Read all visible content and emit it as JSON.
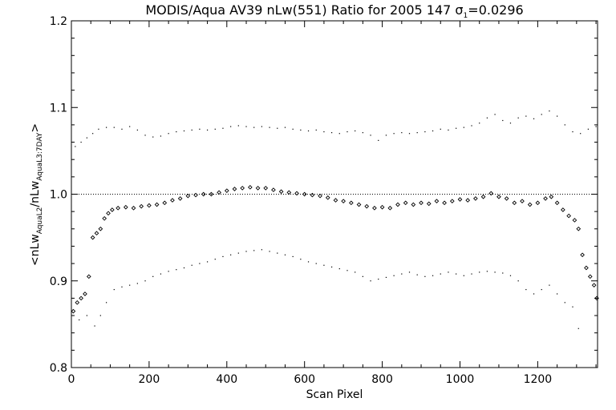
{
  "chart_data": {
    "type": "scatter",
    "title": {
      "main": "MODIS/Aqua AV39 nLw(551) Ratio for 2005 147 ",
      "sigma_symbol": "σ",
      "sigma_sub": "1",
      "sigma_value": "=0.0296"
    },
    "xlabel": "Scan Pixel",
    "ylabel": {
      "prefix": "<nLw",
      "sub1": "AquaL2",
      "mid": "/nLw",
      "sub2": "AquaL3:7DAY",
      "suffix": ">"
    },
    "xlim": [
      0,
      1354
    ],
    "ylim": [
      0.8,
      1.2
    ],
    "x_ticks": [
      0,
      200,
      400,
      600,
      800,
      1000,
      1200
    ],
    "x_tick_labels": [
      "0",
      "200",
      "400",
      "600",
      "800",
      "1000",
      "1200"
    ],
    "y_ticks": [
      0.8,
      0.9,
      1.0,
      1.1,
      1.2
    ],
    "y_tick_labels": [
      "0.8",
      "0.9",
      "1.0",
      "1.1",
      "1.2"
    ],
    "reference_line": 1.0,
    "series": [
      {
        "role": "mean",
        "marker": "diamond",
        "points": [
          [
            5,
            0.865
          ],
          [
            15,
            0.875
          ],
          [
            25,
            0.88
          ],
          [
            35,
            0.885
          ],
          [
            45,
            0.905
          ],
          [
            55,
            0.95
          ],
          [
            65,
            0.955
          ],
          [
            75,
            0.96
          ],
          [
            85,
            0.972
          ],
          [
            95,
            0.978
          ],
          [
            105,
            0.982
          ],
          [
            120,
            0.984
          ],
          [
            140,
            0.985
          ],
          [
            160,
            0.984
          ],
          [
            180,
            0.986
          ],
          [
            200,
            0.987
          ],
          [
            220,
            0.988
          ],
          [
            240,
            0.99
          ],
          [
            260,
            0.993
          ],
          [
            280,
            0.995
          ],
          [
            300,
            0.998
          ],
          [
            320,
            0.999
          ],
          [
            340,
            1.0
          ],
          [
            360,
            1.0
          ],
          [
            380,
            1.002
          ],
          [
            400,
            1.004
          ],
          [
            420,
            1.006
          ],
          [
            440,
            1.007
          ],
          [
            460,
            1.008
          ],
          [
            480,
            1.007
          ],
          [
            500,
            1.007
          ],
          [
            520,
            1.005
          ],
          [
            540,
            1.003
          ],
          [
            560,
            1.002
          ],
          [
            580,
            1.001
          ],
          [
            600,
            1.0
          ],
          [
            620,
            0.999
          ],
          [
            640,
            0.998
          ],
          [
            660,
            0.996
          ],
          [
            680,
            0.993
          ],
          [
            700,
            0.992
          ],
          [
            720,
            0.99
          ],
          [
            740,
            0.988
          ],
          [
            760,
            0.986
          ],
          [
            780,
            0.984
          ],
          [
            800,
            0.985
          ],
          [
            820,
            0.984
          ],
          [
            840,
            0.988
          ],
          [
            860,
            0.99
          ],
          [
            880,
            0.988
          ],
          [
            900,
            0.99
          ],
          [
            920,
            0.989
          ],
          [
            940,
            0.992
          ],
          [
            960,
            0.99
          ],
          [
            980,
            0.992
          ],
          [
            1000,
            0.994
          ],
          [
            1020,
            0.993
          ],
          [
            1040,
            0.995
          ],
          [
            1060,
            0.997
          ],
          [
            1080,
            1.001
          ],
          [
            1100,
            0.997
          ],
          [
            1120,
            0.995
          ],
          [
            1140,
            0.99
          ],
          [
            1160,
            0.992
          ],
          [
            1180,
            0.988
          ],
          [
            1200,
            0.99
          ],
          [
            1220,
            0.995
          ],
          [
            1235,
            0.997
          ],
          [
            1250,
            0.99
          ],
          [
            1265,
            0.982
          ],
          [
            1280,
            0.975
          ],
          [
            1295,
            0.97
          ],
          [
            1305,
            0.96
          ],
          [
            1315,
            0.93
          ],
          [
            1325,
            0.915
          ],
          [
            1335,
            0.905
          ],
          [
            1345,
            0.895
          ],
          [
            1352,
            0.88
          ]
        ]
      },
      {
        "role": "upper",
        "marker": "dot",
        "points": [
          [
            10,
            1.055
          ],
          [
            25,
            1.06
          ],
          [
            40,
            1.065
          ],
          [
            55,
            1.07
          ],
          [
            70,
            1.075
          ],
          [
            90,
            1.077
          ],
          [
            110,
            1.077
          ],
          [
            130,
            1.075
          ],
          [
            150,
            1.078
          ],
          [
            170,
            1.074
          ],
          [
            190,
            1.068
          ],
          [
            210,
            1.066
          ],
          [
            230,
            1.067
          ],
          [
            250,
            1.07
          ],
          [
            270,
            1.072
          ],
          [
            290,
            1.073
          ],
          [
            310,
            1.074
          ],
          [
            330,
            1.075
          ],
          [
            350,
            1.074
          ],
          [
            370,
            1.075
          ],
          [
            390,
            1.076
          ],
          [
            410,
            1.078
          ],
          [
            430,
            1.079
          ],
          [
            450,
            1.078
          ],
          [
            470,
            1.077
          ],
          [
            490,
            1.078
          ],
          [
            510,
            1.077
          ],
          [
            530,
            1.076
          ],
          [
            550,
            1.077
          ],
          [
            570,
            1.075
          ],
          [
            590,
            1.074
          ],
          [
            610,
            1.073
          ],
          [
            630,
            1.074
          ],
          [
            650,
            1.072
          ],
          [
            670,
            1.071
          ],
          [
            690,
            1.07
          ],
          [
            710,
            1.072
          ],
          [
            730,
            1.073
          ],
          [
            750,
            1.071
          ],
          [
            770,
            1.068
          ],
          [
            790,
            1.062
          ],
          [
            810,
            1.068
          ],
          [
            830,
            1.07
          ],
          [
            850,
            1.071
          ],
          [
            870,
            1.07
          ],
          [
            890,
            1.071
          ],
          [
            910,
            1.072
          ],
          [
            930,
            1.073
          ],
          [
            950,
            1.075
          ],
          [
            970,
            1.074
          ],
          [
            990,
            1.076
          ],
          [
            1010,
            1.077
          ],
          [
            1030,
            1.079
          ],
          [
            1050,
            1.082
          ],
          [
            1070,
            1.088
          ],
          [
            1090,
            1.092
          ],
          [
            1110,
            1.085
          ],
          [
            1130,
            1.082
          ],
          [
            1150,
            1.088
          ],
          [
            1170,
            1.09
          ],
          [
            1190,
            1.087
          ],
          [
            1210,
            1.092
          ],
          [
            1230,
            1.096
          ],
          [
            1250,
            1.09
          ],
          [
            1270,
            1.08
          ],
          [
            1290,
            1.072
          ],
          [
            1310,
            1.07
          ],
          [
            1330,
            1.075
          ],
          [
            1350,
            1.078
          ]
        ]
      },
      {
        "role": "lower",
        "marker": "dot",
        "points": [
          [
            20,
            0.855
          ],
          [
            40,
            0.86
          ],
          [
            60,
            0.848
          ],
          [
            75,
            0.86
          ],
          [
            90,
            0.875
          ],
          [
            110,
            0.89
          ],
          [
            130,
            0.893
          ],
          [
            150,
            0.895
          ],
          [
            170,
            0.897
          ],
          [
            190,
            0.9
          ],
          [
            210,
            0.905
          ],
          [
            230,
            0.908
          ],
          [
            250,
            0.911
          ],
          [
            270,
            0.913
          ],
          [
            290,
            0.915
          ],
          [
            310,
            0.918
          ],
          [
            330,
            0.92
          ],
          [
            350,
            0.922
          ],
          [
            370,
            0.925
          ],
          [
            390,
            0.928
          ],
          [
            410,
            0.93
          ],
          [
            430,
            0.932
          ],
          [
            450,
            0.934
          ],
          [
            470,
            0.935
          ],
          [
            490,
            0.936
          ],
          [
            510,
            0.934
          ],
          [
            530,
            0.932
          ],
          [
            550,
            0.93
          ],
          [
            570,
            0.928
          ],
          [
            590,
            0.925
          ],
          [
            610,
            0.922
          ],
          [
            630,
            0.92
          ],
          [
            650,
            0.918
          ],
          [
            670,
            0.916
          ],
          [
            690,
            0.914
          ],
          [
            710,
            0.912
          ],
          [
            730,
            0.91
          ],
          [
            750,
            0.905
          ],
          [
            770,
            0.9
          ],
          [
            790,
            0.902
          ],
          [
            810,
            0.904
          ],
          [
            830,
            0.906
          ],
          [
            850,
            0.908
          ],
          [
            870,
            0.91
          ],
          [
            890,
            0.907
          ],
          [
            910,
            0.905
          ],
          [
            930,
            0.906
          ],
          [
            950,
            0.908
          ],
          [
            970,
            0.91
          ],
          [
            990,
            0.908
          ],
          [
            1010,
            0.906
          ],
          [
            1030,
            0.908
          ],
          [
            1050,
            0.91
          ],
          [
            1070,
            0.911
          ],
          [
            1090,
            0.91
          ],
          [
            1110,
            0.909
          ],
          [
            1130,
            0.906
          ],
          [
            1150,
            0.9
          ],
          [
            1170,
            0.89
          ],
          [
            1190,
            0.885
          ],
          [
            1210,
            0.89
          ],
          [
            1230,
            0.895
          ],
          [
            1250,
            0.885
          ],
          [
            1270,
            0.875
          ],
          [
            1290,
            0.87
          ],
          [
            1305,
            0.845
          ]
        ]
      }
    ]
  }
}
